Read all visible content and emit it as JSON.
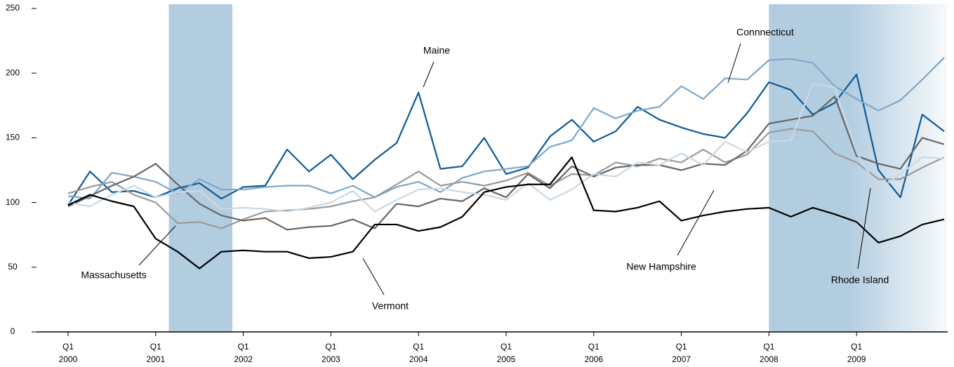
{
  "chart_data": {
    "type": "line",
    "categories": [
      "Q1 2000",
      null,
      null,
      null,
      "Q1 2001",
      null,
      null,
      null,
      "Q1 2002",
      null,
      null,
      null,
      "Q1 2003",
      null,
      null,
      null,
      "Q1 2004",
      null,
      null,
      null,
      "Q1 2005",
      null,
      null,
      null,
      "Q1 2006",
      null,
      null,
      null,
      "Q1 2007",
      null,
      null,
      null,
      "Q1 2008",
      null,
      null,
      null,
      "Q1 2009",
      null,
      null,
      null,
      null
    ],
    "ylim": [
      0,
      250
    ],
    "yticks": [
      0,
      50,
      100,
      150,
      200,
      250
    ],
    "shaded_spans": [
      [
        4.6,
        7.5
      ],
      [
        32,
        40.2
      ]
    ],
    "series": [
      {
        "name": "Maine",
        "color": "#0d5a94",
        "values": [
          98,
          124,
          108,
          109,
          104,
          111,
          115,
          103,
          112,
          113,
          141,
          124,
          137,
          118,
          133,
          146,
          185,
          126,
          128,
          150,
          122,
          127,
          151,
          164,
          147,
          155,
          174,
          164,
          158,
          153,
          150,
          169,
          193,
          187,
          168,
          177,
          199,
          125,
          104,
          168,
          155
        ]
      },
      {
        "name": "Connnecticut",
        "color": "#7ea7c8",
        "values": [
          105,
          103,
          123,
          120,
          116,
          107,
          118,
          110,
          110,
          112,
          113,
          113,
          107,
          113,
          104,
          112,
          116,
          108,
          119,
          124,
          126,
          128,
          143,
          148,
          173,
          165,
          171,
          174,
          190,
          180,
          196,
          195,
          210,
          211,
          208,
          190,
          180,
          171,
          179,
          195,
          212
        ]
      },
      {
        "name": "Massachusetts",
        "color": "#9a9a9a",
        "values": [
          107,
          112,
          116,
          106,
          100,
          84,
          85,
          80,
          87,
          93,
          94,
          95,
          97,
          101,
          104,
          114,
          124,
          113,
          116,
          113,
          117,
          123,
          113,
          122,
          121,
          131,
          128,
          134,
          131,
          141,
          131,
          137,
          154,
          157,
          155,
          138,
          131,
          118,
          118,
          127,
          135
        ]
      },
      {
        "name": "New Hampshire",
        "color": "#666666",
        "values": [
          97,
          105,
          113,
          120,
          130,
          114,
          99,
          90,
          86,
          88,
          79,
          81,
          82,
          87,
          80,
          99,
          97,
          103,
          101,
          111,
          104,
          122,
          111,
          128,
          120,
          127,
          129,
          129,
          125,
          130,
          129,
          140,
          161,
          164,
          167,
          182,
          136,
          130,
          126,
          150,
          145
        ]
      },
      {
        "name": "Rhode Island",
        "color": "#c9d9e6",
        "values": [
          100,
          97,
          106,
          113,
          104,
          108,
          109,
          95,
          96,
          95,
          93,
          96,
          100,
          109,
          93,
          102,
          110,
          111,
          108,
          106,
          102,
          115,
          102,
          110,
          122,
          120,
          131,
          129,
          138,
          129,
          147,
          139,
          147,
          148,
          192,
          189,
          139,
          110,
          122,
          135,
          134
        ]
      },
      {
        "name": "Vermont",
        "color": "#000000",
        "values": [
          98,
          106,
          101,
          97,
          72,
          62,
          49,
          62,
          63,
          62,
          62,
          57,
          58,
          62,
          83,
          83,
          78,
          81,
          89,
          108,
          112,
          114,
          114,
          135,
          94,
          93,
          96,
          101,
          86,
          90,
          93,
          95,
          96,
          89,
          96,
          91,
          85,
          69,
          74,
          83,
          87
        ]
      }
    ]
  }
}
